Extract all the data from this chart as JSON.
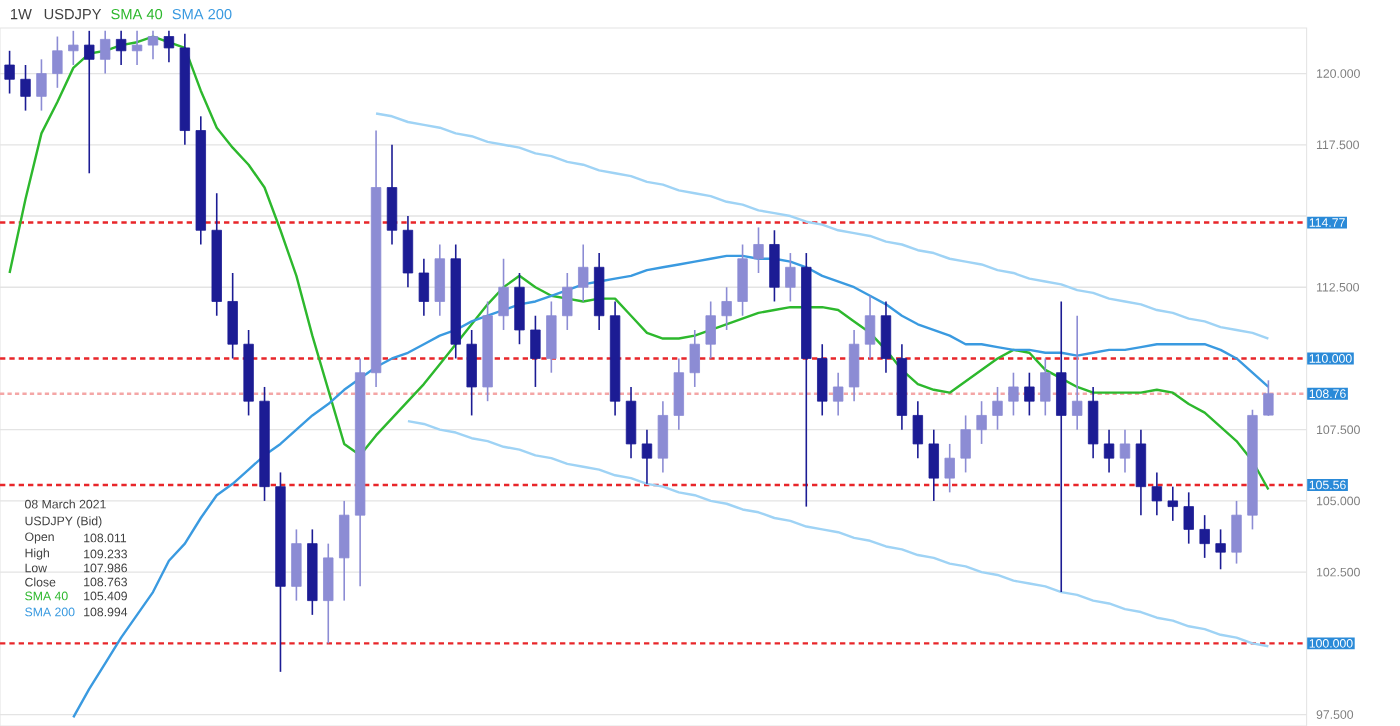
{
  "chart_data": {
    "type": "candlestick",
    "title": "USDJPY",
    "subtitle": "1W",
    "annotations": [
      "08 March 2021",
      "USDJPY (Bid)",
      "Open",
      "108.011",
      "High",
      "109.233",
      "Low",
      "107.986",
      "Close",
      "108.763",
      "SMA 40",
      "105.409",
      "SMA 200",
      "108.994"
    ],
    "categories": [
      null,
      null,
      null,
      null,
      null,
      null,
      null,
      null,
      null,
      null,
      null,
      null,
      null,
      null,
      null,
      null,
      null,
      null,
      null,
      null,
      null,
      null,
      null,
      null,
      null,
      null,
      null,
      null,
      null,
      null,
      null,
      null,
      null,
      null,
      null,
      null,
      null,
      null,
      null,
      null,
      null,
      null,
      null,
      null,
      null,
      null,
      null,
      null,
      null,
      null,
      null,
      null,
      null,
      null,
      null,
      null,
      null,
      null,
      null,
      null,
      null,
      null,
      null,
      null,
      null,
      null,
      null,
      null,
      null,
      null,
      null,
      null,
      null,
      null,
      null,
      null,
      null,
      null,
      null,
      null
    ],
    "ohlc": [
      [
        120.3,
        120.8,
        119.3,
        119.8
      ],
      [
        119.8,
        120.3,
        118.7,
        119.2
      ],
      [
        119.2,
        120.5,
        118.7,
        120.0
      ],
      [
        120.0,
        121.3,
        119.5,
        120.8
      ],
      [
        120.8,
        121.5,
        120.3,
        121.0
      ],
      [
        121.0,
        121.5,
        116.5,
        120.5
      ],
      [
        120.5,
        121.5,
        120.0,
        121.2
      ],
      [
        121.2,
        121.5,
        120.3,
        120.8
      ],
      [
        120.8,
        121.5,
        120.3,
        121.0
      ],
      [
        121.0,
        121.5,
        120.5,
        121.3
      ],
      [
        121.3,
        121.5,
        120.4,
        120.9
      ],
      [
        120.9,
        121.4,
        117.5,
        118.0
      ],
      [
        118.0,
        118.5,
        114.0,
        114.5
      ],
      [
        114.5,
        115.8,
        111.5,
        112.0
      ],
      [
        112.0,
        113.0,
        110.0,
        110.5
      ],
      [
        110.5,
        111.0,
        108.0,
        108.5
      ],
      [
        108.5,
        109.0,
        105.0,
        105.5
      ],
      [
        105.5,
        106.0,
        99.0,
        102.0
      ],
      [
        102.0,
        104.0,
        101.5,
        103.5
      ],
      [
        103.5,
        104.0,
        101.0,
        101.5
      ],
      [
        101.5,
        103.5,
        100.0,
        103.0
      ],
      [
        103.0,
        105.0,
        101.5,
        104.5
      ],
      [
        104.5,
        110.0,
        102.0,
        109.5
      ],
      [
        109.5,
        118.0,
        109.0,
        116.0
      ],
      [
        116.0,
        117.5,
        114.0,
        114.5
      ],
      [
        114.5,
        115.0,
        112.5,
        113.0
      ],
      [
        113.0,
        113.5,
        111.5,
        112.0
      ],
      [
        112.0,
        114.0,
        111.5,
        113.5
      ],
      [
        113.5,
        114.0,
        110.0,
        110.5
      ],
      [
        110.5,
        111.0,
        108.0,
        109.0
      ],
      [
        109.0,
        112.0,
        108.5,
        111.5
      ],
      [
        111.5,
        113.5,
        111.0,
        112.5
      ],
      [
        112.5,
        113.0,
        110.5,
        111.0
      ],
      [
        111.0,
        111.5,
        109.0,
        110.0
      ],
      [
        110.0,
        112.0,
        109.5,
        111.5
      ],
      [
        111.5,
        113.0,
        111.0,
        112.5
      ],
      [
        112.5,
        114.0,
        112.0,
        113.2
      ],
      [
        113.2,
        113.7,
        111.0,
        111.5
      ],
      [
        111.5,
        112.0,
        108.0,
        108.5
      ],
      [
        108.5,
        109.0,
        106.5,
        107.0
      ],
      [
        107.0,
        107.5,
        105.6,
        106.5
      ],
      [
        106.5,
        108.5,
        106.0,
        108.0
      ],
      [
        108.0,
        110.0,
        107.5,
        109.5
      ],
      [
        109.5,
        111.0,
        109.0,
        110.5
      ],
      [
        110.5,
        112.0,
        110.0,
        111.5
      ],
      [
        111.5,
        112.5,
        111.0,
        112.0
      ],
      [
        112.0,
        114.0,
        111.5,
        113.5
      ],
      [
        113.5,
        114.6,
        113.0,
        114.0
      ],
      [
        114.0,
        114.5,
        112.0,
        112.5
      ],
      [
        112.5,
        113.7,
        112.0,
        113.2
      ],
      [
        113.2,
        113.7,
        104.8,
        110.0
      ],
      [
        110.0,
        110.5,
        108.0,
        108.5
      ],
      [
        108.5,
        109.5,
        108.0,
        109.0
      ],
      [
        109.0,
        111.0,
        108.5,
        110.5
      ],
      [
        110.5,
        112.2,
        110.0,
        111.5
      ],
      [
        111.5,
        112.0,
        109.5,
        110.0
      ],
      [
        110.0,
        110.5,
        107.5,
        108.0
      ],
      [
        108.0,
        108.5,
        106.5,
        107.0
      ],
      [
        107.0,
        107.5,
        105.0,
        105.8
      ],
      [
        105.8,
        107.0,
        105.3,
        106.5
      ],
      [
        106.5,
        108.0,
        106.0,
        107.5
      ],
      [
        107.5,
        108.5,
        107.0,
        108.0
      ],
      [
        108.0,
        109.0,
        107.5,
        108.5
      ],
      [
        108.5,
        109.5,
        108.0,
        109.0
      ],
      [
        109.0,
        109.5,
        108.0,
        108.5
      ],
      [
        108.5,
        110.0,
        108.0,
        109.5
      ],
      [
        109.5,
        112.0,
        101.8,
        108.0
      ],
      [
        108.0,
        111.5,
        107.5,
        108.5
      ],
      [
        108.5,
        109.0,
        106.5,
        107.0
      ],
      [
        107.0,
        107.5,
        106.0,
        106.5
      ],
      [
        106.5,
        107.5,
        106.0,
        107.0
      ],
      [
        107.0,
        107.5,
        104.5,
        105.5
      ],
      [
        105.5,
        106.0,
        104.5,
        105.0
      ],
      [
        105.0,
        105.5,
        104.3,
        104.8
      ],
      [
        104.8,
        105.3,
        103.5,
        104.0
      ],
      [
        104.0,
        104.5,
        103.0,
        103.5
      ],
      [
        103.5,
        104.0,
        102.6,
        103.2
      ],
      [
        103.2,
        105.0,
        102.8,
        104.5
      ],
      [
        104.5,
        108.2,
        104.0,
        108.0
      ],
      [
        108.011,
        109.233,
        107.986,
        108.763
      ]
    ],
    "colors": [
      "#1c1c94",
      "#1c1c94",
      "#8c8cd4",
      "#8c8cd4",
      "#8c8cd4",
      "#1c1c94",
      "#8c8cd4",
      "#1c1c94",
      "#8c8cd4",
      "#8c8cd4",
      "#1c1c94",
      "#1c1c94",
      "#1c1c94",
      "#1c1c94",
      "#1c1c94",
      "#1c1c94",
      "#1c1c94",
      "#1c1c94",
      "#8c8cd4",
      "#1c1c94",
      "#8c8cd4",
      "#8c8cd4",
      "#8c8cd4",
      "#8c8cd4",
      "#1c1c94",
      "#1c1c94",
      "#1c1c94",
      "#8c8cd4",
      "#1c1c94",
      "#1c1c94",
      "#8c8cd4",
      "#8c8cd4",
      "#1c1c94",
      "#1c1c94",
      "#8c8cd4",
      "#8c8cd4",
      "#8c8cd4",
      "#1c1c94",
      "#1c1c94",
      "#1c1c94",
      "#1c1c94",
      "#8c8cd4",
      "#8c8cd4",
      "#8c8cd4",
      "#8c8cd4",
      "#8c8cd4",
      "#8c8cd4",
      "#8c8cd4",
      "#1c1c94",
      "#8c8cd4",
      "#1c1c94",
      "#1c1c94",
      "#8c8cd4",
      "#8c8cd4",
      "#8c8cd4",
      "#1c1c94",
      "#1c1c94",
      "#1c1c94",
      "#1c1c94",
      "#8c8cd4",
      "#8c8cd4",
      "#8c8cd4",
      "#8c8cd4",
      "#8c8cd4",
      "#1c1c94",
      "#8c8cd4",
      "#1c1c94",
      "#8c8cd4",
      "#1c1c94",
      "#1c1c94",
      "#8c8cd4",
      "#1c1c94",
      "#1c1c94",
      "#1c1c94",
      "#1c1c94",
      "#1c1c94",
      "#1c1c94",
      "#8c8cd4",
      "#8c8cd4",
      "#8c8cd4"
    ],
    "series": [
      {
        "name": "SMA 40",
        "type": "line",
        "color": "#2db82d",
        "values": [
          113.0,
          115.6,
          117.9,
          119.0,
          120.2,
          120.7,
          120.8,
          121.0,
          121.1,
          121.3,
          121.1,
          120.9,
          119.4,
          118.1,
          117.4,
          116.8,
          116.0,
          114.5,
          112.9,
          110.8,
          108.9,
          107.0,
          106.6,
          107.3,
          107.9,
          108.5,
          109.1,
          109.8,
          110.5,
          111.2,
          111.9,
          112.5,
          112.9,
          112.5,
          112.2,
          112.1,
          112.0,
          112.1,
          112.1,
          111.5,
          110.9,
          110.7,
          110.7,
          110.8,
          111.0,
          111.2,
          111.4,
          111.6,
          111.7,
          111.8,
          111.8,
          111.8,
          111.7,
          111.3,
          110.9,
          110.3,
          109.6,
          109.1,
          108.9,
          108.8,
          109.2,
          109.6,
          110.0,
          110.3,
          110.2,
          109.6,
          109.3,
          109.0,
          108.8,
          108.8,
          108.8,
          108.8,
          108.9,
          108.8,
          108.4,
          108.1,
          107.6,
          107.1,
          106.4,
          105.4
        ]
      },
      {
        "name": "SMA 200",
        "type": "line",
        "color": "#3a9ae0",
        "values": [
          null,
          null,
          null,
          null,
          97.4,
          98.4,
          99.3,
          100.2,
          101.0,
          101.8,
          102.9,
          103.5,
          104.4,
          105.2,
          105.6,
          106.1,
          106.6,
          107.0,
          107.5,
          108.0,
          108.4,
          108.9,
          109.3,
          109.7,
          110.0,
          110.2,
          110.5,
          110.8,
          111.0,
          111.3,
          111.5,
          111.7,
          111.9,
          112.0,
          112.2,
          112.4,
          112.6,
          112.7,
          112.8,
          112.9,
          113.1,
          113.2,
          113.3,
          113.4,
          113.5,
          113.6,
          113.6,
          113.5,
          113.5,
          113.4,
          113.2,
          112.9,
          112.7,
          112.5,
          112.2,
          111.9,
          111.5,
          111.2,
          111.0,
          110.8,
          110.5,
          110.5,
          110.4,
          110.3,
          110.3,
          110.2,
          110.2,
          110.1,
          110.2,
          110.3,
          110.3,
          110.4,
          110.5,
          110.5,
          110.5,
          110.5,
          110.3,
          110.0,
          109.5,
          109.0
        ]
      },
      {
        "type": "line",
        "color": "#9fd3f5",
        "values": [
          null,
          null,
          null,
          null,
          null,
          null,
          null,
          null,
          null,
          null,
          null,
          null,
          null,
          null,
          null,
          null,
          null,
          null,
          null,
          null,
          null,
          null,
          null,
          118.6,
          118.5,
          118.3,
          118.2,
          118.1,
          117.9,
          117.8,
          117.6,
          117.5,
          117.4,
          117.2,
          117.1,
          116.9,
          116.8,
          116.6,
          116.5,
          116.4,
          116.2,
          116.1,
          115.9,
          115.8,
          115.7,
          115.5,
          115.4,
          115.2,
          115.1,
          115.0,
          114.8,
          114.7,
          114.5,
          114.4,
          114.3,
          114.1,
          114.0,
          113.8,
          113.7,
          113.5,
          113.4,
          113.3,
          113.1,
          113.0,
          112.8,
          112.7,
          112.6,
          112.4,
          112.3,
          112.1,
          112.0,
          111.9,
          111.7,
          111.6,
          111.4,
          111.3,
          111.1,
          111.0,
          110.9,
          110.7
        ]
      },
      {
        "type": "line",
        "color": "#9fd3f5",
        "values": [
          null,
          null,
          null,
          null,
          null,
          null,
          null,
          null,
          null,
          null,
          null,
          null,
          null,
          null,
          null,
          null,
          null,
          null,
          null,
          null,
          null,
          null,
          null,
          null,
          null,
          107.8,
          107.7,
          107.5,
          107.4,
          107.2,
          107.1,
          106.9,
          106.8,
          106.6,
          106.5,
          106.3,
          106.2,
          106.1,
          105.9,
          105.8,
          105.6,
          105.5,
          105.3,
          105.2,
          105.0,
          104.9,
          104.7,
          104.6,
          104.4,
          104.3,
          104.1,
          104.0,
          103.9,
          103.7,
          103.6,
          103.4,
          103.3,
          103.1,
          103.0,
          102.8,
          102.7,
          102.5,
          102.4,
          102.2,
          102.1,
          102.0,
          101.8,
          101.7,
          101.5,
          101.4,
          101.2,
          101.1,
          100.9,
          100.8,
          100.6,
          100.5,
          100.3,
          100.2,
          100.0,
          99.9
        ]
      }
    ],
    "ylim": [
      97.1,
      121.6
    ],
    "yticks": [
      {
        "value": 97.5,
        "label": "97.500"
      },
      {
        "value": 102.5,
        "label": "102.500"
      },
      {
        "value": 105,
        "label": "105.000"
      },
      {
        "value": 107.5,
        "label": "107.500"
      },
      {
        "value": 112.5,
        "label": "112.500"
      },
      {
        "value": 115,
        "label": null
      },
      {
        "value": 117.5,
        "label": "117.500"
      },
      {
        "value": 120,
        "label": "120.000"
      }
    ],
    "tick_labels": "y",
    "grid": "y",
    "ref_lines": [
      {
        "axis": "y",
        "value": 114.77,
        "label": "114.77",
        "color": "#e8262a",
        "line_style": "dashed"
      },
      {
        "axis": "y",
        "value": 110,
        "label": "110.000",
        "color": "#e8262a",
        "line_style": "dashed"
      },
      {
        "axis": "y",
        "value": 108.763,
        "label": "108.76",
        "color": "#f4a6a6",
        "line_style": "dotted"
      },
      {
        "axis": "y",
        "value": 105.56,
        "label": "105.56",
        "color": "#e8262a",
        "line_style": "dashed"
      },
      {
        "axis": "y",
        "value": 100,
        "label": "100.000",
        "color": "#e8262a",
        "line_style": "dashed"
      }
    ]
  }
}
